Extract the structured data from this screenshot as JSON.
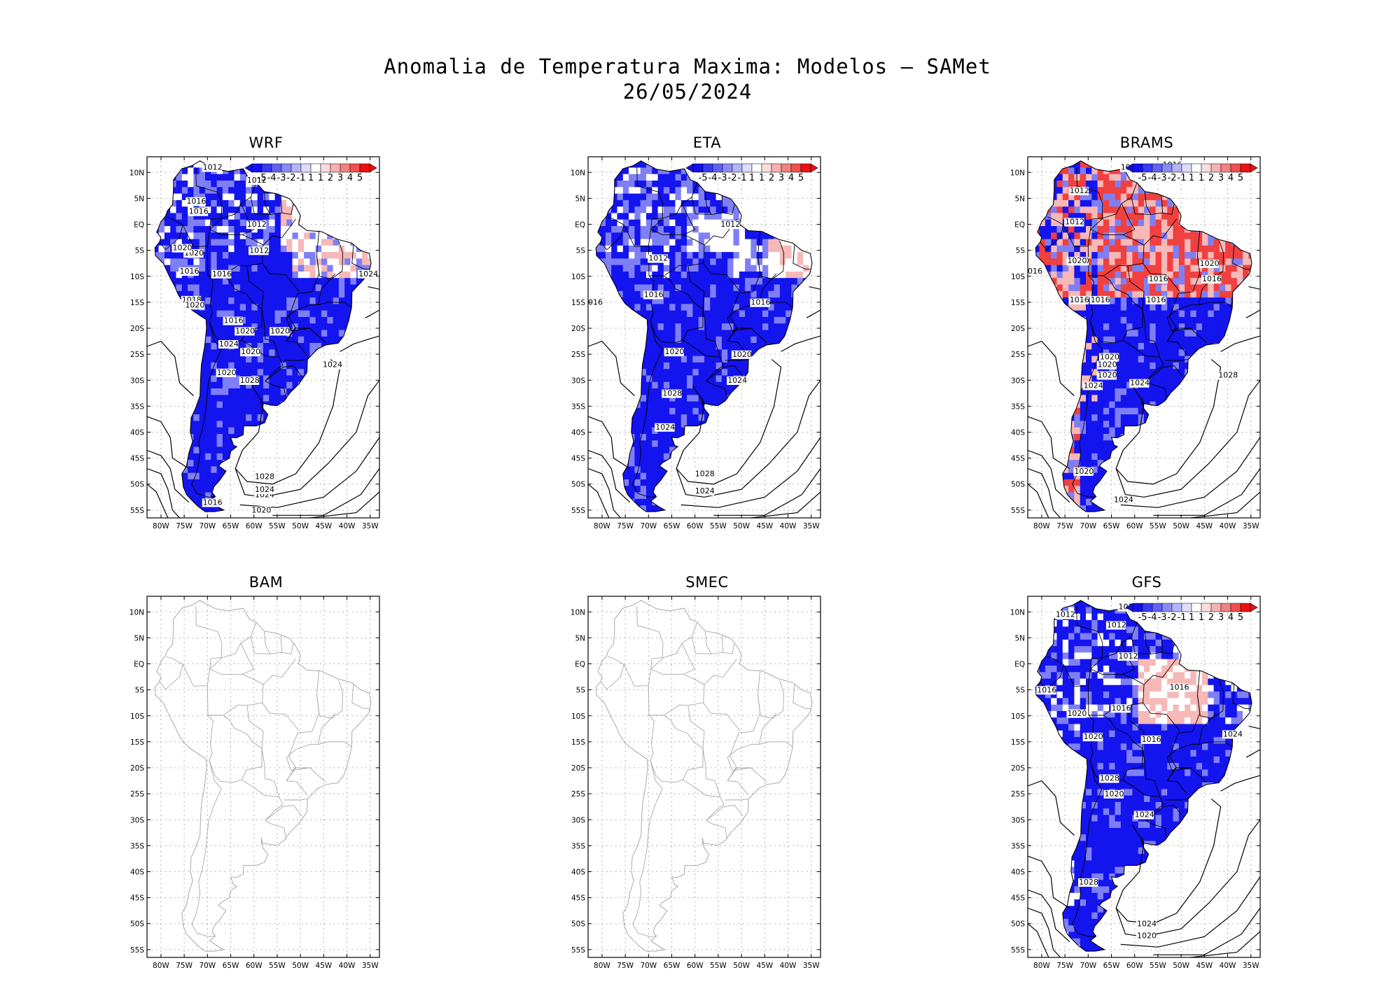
{
  "title": {
    "line1": "Anomalia de Temperatura Maxima: Modelos — SAMet",
    "line2": "26/05/2024"
  },
  "axes": {
    "y_ticks": [
      "10N",
      "5N",
      "EQ",
      "5S",
      "10S",
      "15S",
      "20S",
      "25S",
      "30S",
      "35S",
      "40S",
      "45S",
      "50S",
      "55S"
    ],
    "x_ticks": [
      "80W",
      "75W",
      "70W",
      "65W",
      "60W",
      "55W",
      "50W",
      "45W",
      "40W",
      "35W"
    ]
  },
  "colorbar": {
    "labels": [
      "-5",
      "-4",
      "-3",
      "-2",
      "-1",
      "1",
      "1",
      "2",
      "3",
      "4",
      "5"
    ],
    "colors": [
      "#1010ee",
      "#3a3af2",
      "#6161f4",
      "#8a8af6",
      "#b4b4f9",
      "#dcdcfb",
      "#ffffff",
      "#fbdcdc",
      "#f8b0b0",
      "#f48080",
      "#f05050",
      "#ee1010"
    ]
  },
  "colors": {
    "cold": "#1414ee",
    "cold_light": "#7f7ff5",
    "warm": "#f04040",
    "warm_light": "#f7b8b8",
    "grey_coast": "#a9a9a9"
  },
  "panels": [
    {
      "id": "wrf",
      "title": "WRF",
      "has_data": true,
      "contours": [
        "1012",
        "1012",
        "1016",
        "1016",
        "1012",
        "1012",
        "1020",
        "1020",
        "1016",
        "1016",
        "1024",
        "1018",
        "1020",
        "1016",
        "1020",
        "1020",
        "1024",
        "1020",
        "1024",
        "1020",
        "1028",
        "1024",
        "1028",
        "1024",
        "1016",
        "1020"
      ]
    },
    {
      "id": "eta",
      "title": "ETA",
      "has_data": true,
      "contours": [
        "1012",
        "1012",
        "1016",
        "016",
        "1016",
        "1020",
        "1020",
        "1024",
        "1028",
        "1024",
        "1028",
        "1024"
      ]
    },
    {
      "id": "brams",
      "title": "BRAMS",
      "has_data": true,
      "contours": [
        "1016",
        "1012",
        "1016",
        "1012",
        "1020",
        "016",
        "1016",
        "1016",
        "1016",
        "1016",
        "1016",
        "1020",
        "1020",
        "1020",
        "1020",
        "1020",
        "1024",
        "1024",
        "1028",
        "1020",
        "1024"
      ]
    },
    {
      "id": "bam",
      "title": "BAM",
      "has_data": false,
      "contours": []
    },
    {
      "id": "smec",
      "title": "SMEC",
      "has_data": false,
      "contours": []
    },
    {
      "id": "gfs",
      "title": "GFS",
      "has_data": true,
      "contours": [
        "1012",
        "1012",
        "1012",
        "1012",
        "1016",
        "1020",
        "1016",
        "1016",
        "1020",
        "1016",
        "1024",
        "1020",
        "1028",
        "1024",
        "1028",
        "1024",
        "1020"
      ]
    }
  ]
}
